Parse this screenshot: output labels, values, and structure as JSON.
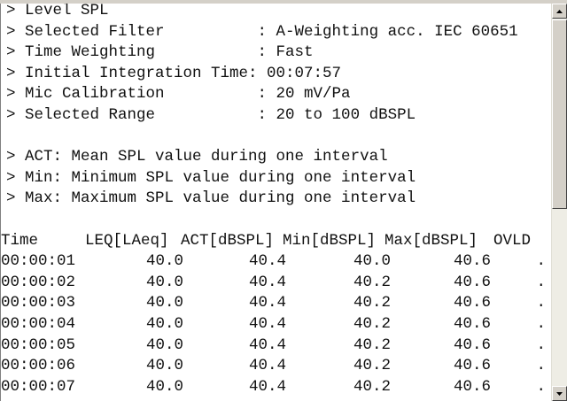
{
  "header_lines": [
    "> Level SPL",
    "> Selected Filter          : A-Weighting acc. IEC 60651",
    "> Time Weighting           : Fast",
    "> Initial Integration Time: 00:07:57",
    "> Mic Calibration          : 20 mV/Pa",
    "> Selected Range           : 20 to 100 dBSPL"
  ],
  "legend_lines": [
    "> ACT: Mean SPL value during one interval",
    "> Min: Minimum SPL value during one interval",
    "> Max: Maximum SPL value during one interval"
  ],
  "table": {
    "columns": [
      "Time",
      "LEQ[LAeq]",
      "ACT[dBSPL]",
      "Min[dBSPL]",
      "Max[dBSPL]",
      "OVLD"
    ],
    "rows": [
      [
        "00:00:01",
        "40.0",
        "40.4",
        "40.0",
        "40.6",
        "."
      ],
      [
        "00:00:02",
        "40.0",
        "40.4",
        "40.2",
        "40.6",
        "."
      ],
      [
        "00:00:03",
        "40.0",
        "40.4",
        "40.2",
        "40.6",
        "."
      ],
      [
        "00:00:04",
        "40.0",
        "40.4",
        "40.2",
        "40.6",
        "."
      ],
      [
        "00:00:05",
        "40.0",
        "40.4",
        "40.2",
        "40.6",
        "."
      ],
      [
        "00:00:06",
        "40.0",
        "40.4",
        "40.2",
        "40.6",
        "."
      ],
      [
        "00:00:07",
        "40.0",
        "40.4",
        "40.2",
        "40.6",
        "."
      ]
    ]
  }
}
